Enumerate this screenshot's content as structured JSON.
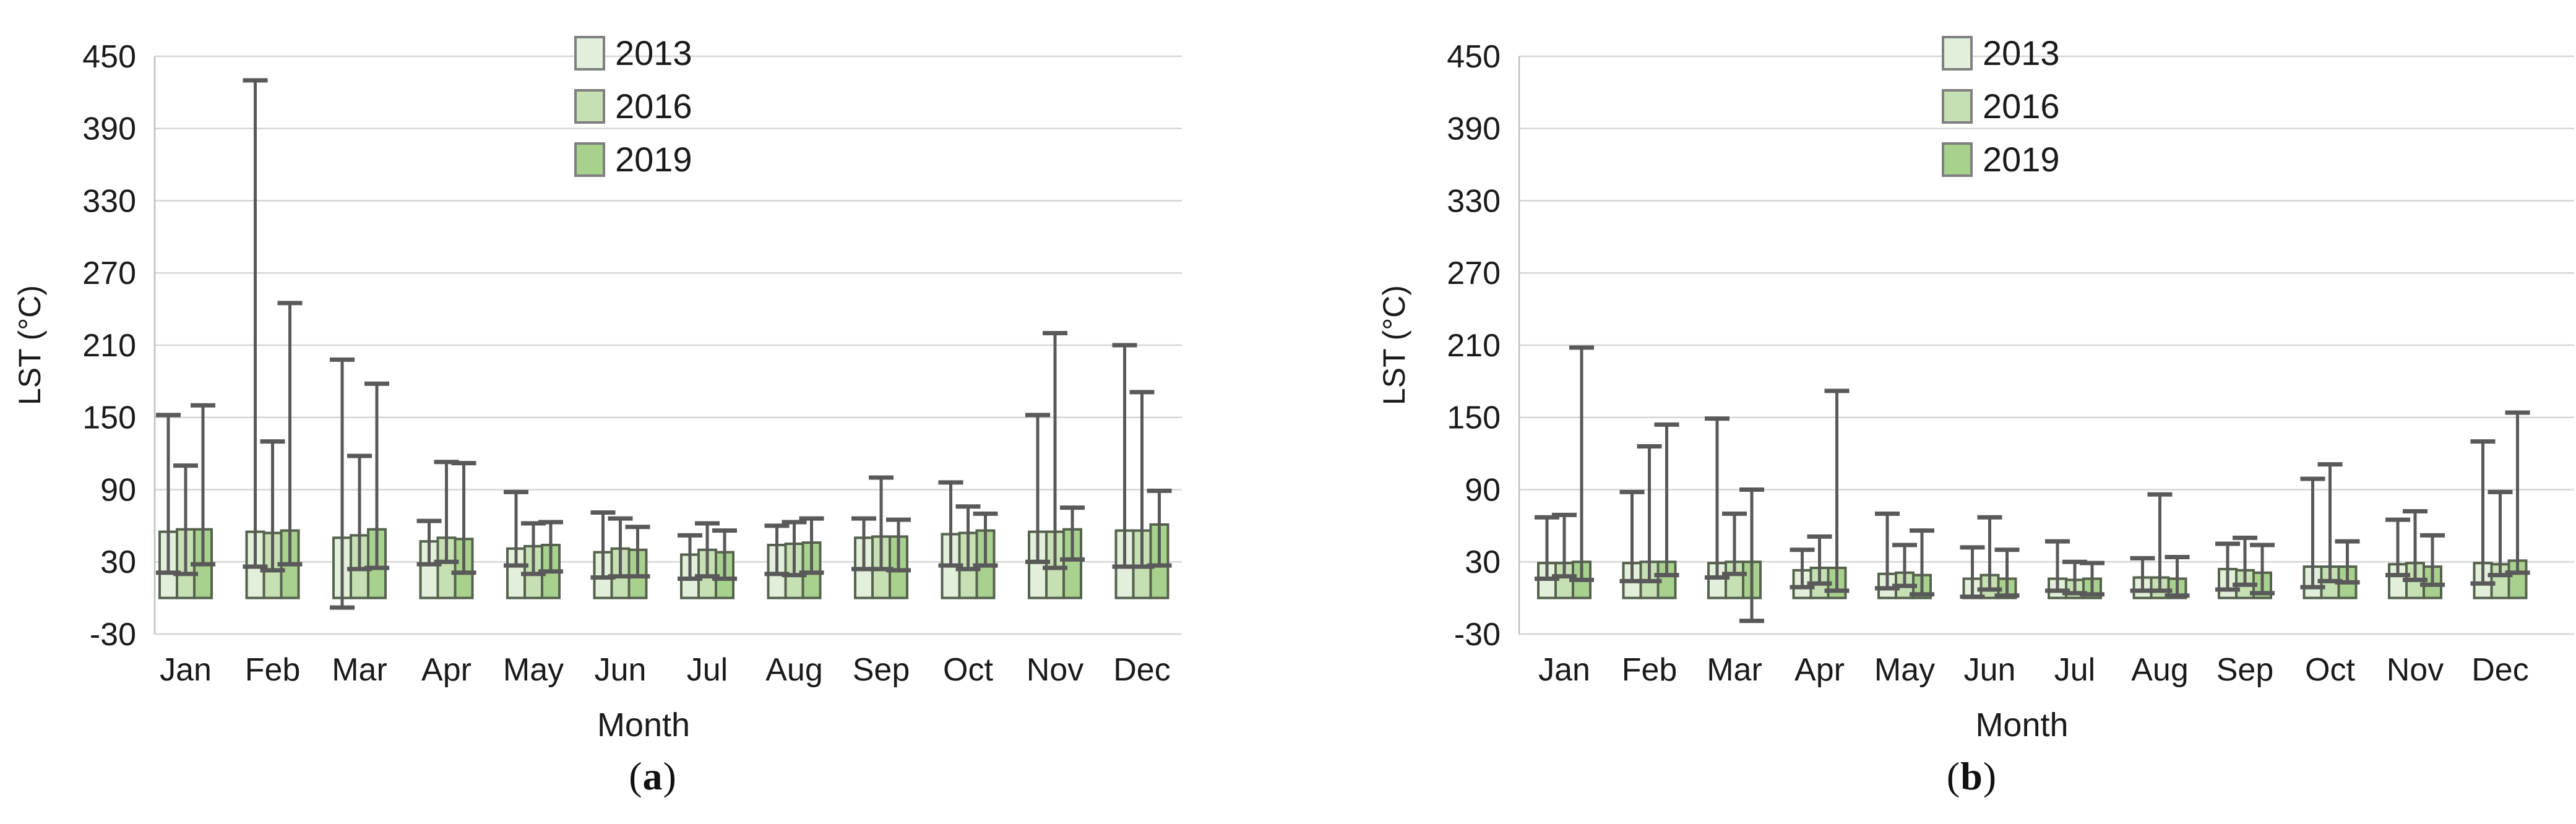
{
  "figure": {
    "ylabel": "LST (°C)",
    "xlabel": "Month",
    "captions": {
      "a": "a",
      "b": "b"
    },
    "colors": {
      "y2013": "#e2efda",
      "y2016": "#c6e0b4",
      "y2019": "#a9d18e",
      "bar_border": "#55624d",
      "whisker": "#595959",
      "gridline": "#d6d6d6",
      "axis_line": "#bfbfbf",
      "text": "#1a1a1a",
      "legend_swatch_border": "#7f7f7f"
    }
  },
  "chart_data": [
    {
      "type": "bar",
      "panel": "a",
      "title": "",
      "xlabel": "Month",
      "ylabel": "LST (°C)",
      "ylim": [
        -30,
        450
      ],
      "yticks": [
        450,
        390,
        330,
        270,
        210,
        150,
        90,
        30,
        -30
      ],
      "grid": true,
      "legend_position": "top-center",
      "categories": [
        "Jan",
        "Feb",
        "Mar",
        "Apr",
        "May",
        "Jun",
        "Jul",
        "Aug",
        "Sep",
        "Oct",
        "Nov",
        "Dec"
      ],
      "series": [
        {
          "name": "2013",
          "color": "#e2efda",
          "values": [
            55,
            55,
            50,
            47,
            41,
            38,
            36,
            44,
            50,
            53,
            55,
            56
          ],
          "whisker_max": [
            152,
            430,
            198,
            64,
            88,
            71,
            52,
            60,
            66,
            96,
            152,
            210
          ],
          "whisker_min": [
            21,
            26,
            -8,
            28,
            27,
            17,
            16,
            20,
            24,
            27,
            30,
            26
          ]
        },
        {
          "name": "2016",
          "color": "#c6e0b4",
          "values": [
            57,
            54,
            52,
            50,
            43,
            41,
            40,
            45,
            51,
            54,
            55,
            56
          ],
          "whisker_max": [
            110,
            130,
            118,
            113,
            62,
            66,
            62,
            63,
            100,
            76,
            220,
            171
          ],
          "whisker_min": [
            20,
            23,
            24,
            30,
            20,
            18,
            18,
            19,
            24,
            24,
            25,
            26
          ]
        },
        {
          "name": "2019",
          "color": "#a9d18e",
          "values": [
            57,
            56,
            57,
            49,
            44,
            40,
            38,
            46,
            51,
            56,
            57,
            61
          ],
          "whisker_max": [
            160,
            245,
            178,
            112,
            63,
            59,
            56,
            66,
            65,
            70,
            75,
            89
          ],
          "whisker_min": [
            28,
            28,
            25,
            21,
            22,
            18,
            16,
            21,
            23,
            27,
            32,
            27
          ]
        }
      ]
    },
    {
      "type": "bar",
      "panel": "b",
      "title": "",
      "xlabel": "Month",
      "ylabel": "LST (°C)",
      "ylim": [
        -30,
        450
      ],
      "yticks": [
        450,
        390,
        330,
        270,
        210,
        150,
        90,
        30,
        -30
      ],
      "grid": true,
      "legend_position": "top-center",
      "categories": [
        "Jan",
        "Feb",
        "Mar",
        "Apr",
        "May",
        "Jun",
        "Jul",
        "Aug",
        "Sep",
        "Oct",
        "Nov",
        "Dec"
      ],
      "series": [
        {
          "name": "2013",
          "color": "#e2efda",
          "values": [
            29,
            29,
            29,
            23,
            20,
            16,
            16,
            17,
            24,
            26,
            28,
            29
          ],
          "whisker_max": [
            67,
            88,
            149,
            40,
            70,
            42,
            47,
            33,
            45,
            99,
            65,
            130
          ],
          "whisker_min": [
            16,
            14,
            17,
            9,
            8,
            1,
            6,
            6,
            7,
            9,
            19,
            12
          ]
        },
        {
          "name": "2016",
          "color": "#c6e0b4",
          "values": [
            29,
            30,
            30,
            25,
            21,
            19,
            15,
            17,
            23,
            26,
            29,
            28
          ],
          "whisker_max": [
            69,
            126,
            70,
            51,
            44,
            67,
            30,
            86,
            50,
            111,
            72,
            88
          ],
          "whisker_min": [
            18,
            14,
            20,
            12,
            10,
            7,
            4,
            6,
            11,
            14,
            15,
            19
          ]
        },
        {
          "name": "2019",
          "color": "#a9d18e",
          "values": [
            30,
            30,
            30,
            25,
            19,
            16,
            16,
            16,
            21,
            26,
            26,
            31
          ],
          "whisker_max": [
            208,
            144,
            90,
            172,
            56,
            40,
            29,
            34,
            44,
            47,
            52,
            154
          ],
          "whisker_min": [
            15,
            19,
            -19,
            6,
            3,
            2,
            3,
            2,
            4,
            13,
            11,
            21
          ]
        }
      ]
    }
  ]
}
